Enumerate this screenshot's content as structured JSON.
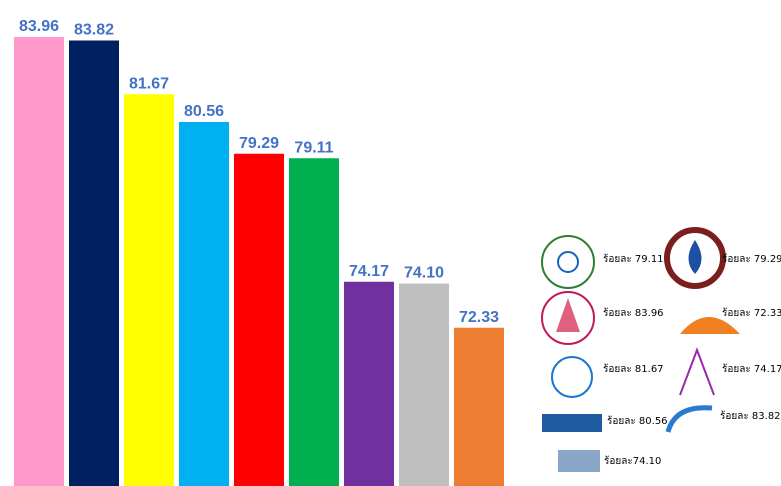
{
  "chart_data": {
    "type": "bar",
    "categories": [
      null,
      null,
      null,
      null,
      null,
      null,
      null,
      null,
      null
    ],
    "values": [
      83.96,
      83.82,
      81.67,
      80.56,
      79.29,
      79.11,
      74.17,
      74.1,
      72.33
    ],
    "value_labels": [
      "83.96",
      "83.82",
      "81.67",
      "80.56",
      "79.29",
      "79.11",
      "74.17",
      "74.10",
      "72.33"
    ],
    "colors": [
      "#ff99cc",
      "#002060",
      "#ffff00",
      "#00b0f0",
      "#ff0000",
      "#00b050",
      "#7030a0",
      "#bfbfbf",
      "#ed7d31"
    ],
    "ylim": [
      66,
      85.44
    ],
    "annotations": [
      "ร้อยละ 79.11",
      "ร้อยละ 79.29",
      "ร้อยละ 83.96",
      "ร้อยละ 72.33",
      "ร้อยละ 81.67",
      "ร้อยละ 74.17",
      "ร้อยละ 80.56",
      "ร้อยละ 83.82",
      "ร้อยละ74.10"
    ]
  }
}
